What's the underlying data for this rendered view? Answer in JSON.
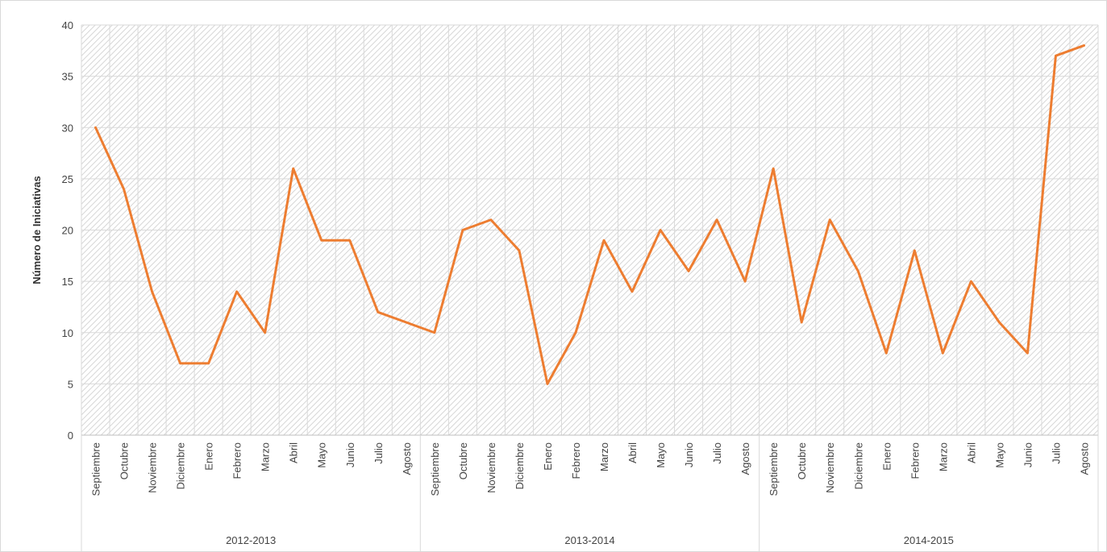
{
  "chart_data": {
    "type": "line",
    "title": "",
    "xlabel": "",
    "ylabel": "Número de Iniciativas",
    "ylim": [
      0,
      40
    ],
    "yticks": [
      0,
      5,
      10,
      15,
      20,
      25,
      30,
      35,
      40
    ],
    "grid": true,
    "legend": "none",
    "line_color": "#ED7D31",
    "groups": [
      {
        "label": "2012-2013",
        "start": 0,
        "count": 12
      },
      {
        "label": "2013-2014",
        "start": 12,
        "count": 12
      },
      {
        "label": "2014-2015",
        "start": 24,
        "count": 12
      }
    ],
    "categories": [
      "Septiembre",
      "Octubre",
      "Noviembre",
      "Diciembre",
      "Enero",
      "Febrero",
      "Marzo",
      "Abril",
      "Mayo",
      "Junio",
      "Julio",
      "Agosto",
      "Septiembre",
      "Octubre",
      "Noviembre",
      "Diciembre",
      "Enero",
      "Febrero",
      "Marzo",
      "Abril",
      "Mayo",
      "Junio",
      "Julio",
      "Agosto",
      "Septiembre",
      "Octubre",
      "Noviembre",
      "Diciembre",
      "Enero",
      "Febrero",
      "Marzo",
      "Abril",
      "Mayo",
      "Junio",
      "Julio",
      "Agosto"
    ],
    "series": [
      {
        "values": [
          30,
          24,
          14,
          7,
          7,
          14,
          10,
          26,
          19,
          19,
          12,
          11,
          10,
          20,
          21,
          18,
          5,
          10,
          19,
          14,
          20,
          16,
          21,
          15,
          26,
          11,
          21,
          16,
          8,
          18,
          8,
          15,
          11,
          8,
          37,
          38
        ]
      }
    ]
  }
}
